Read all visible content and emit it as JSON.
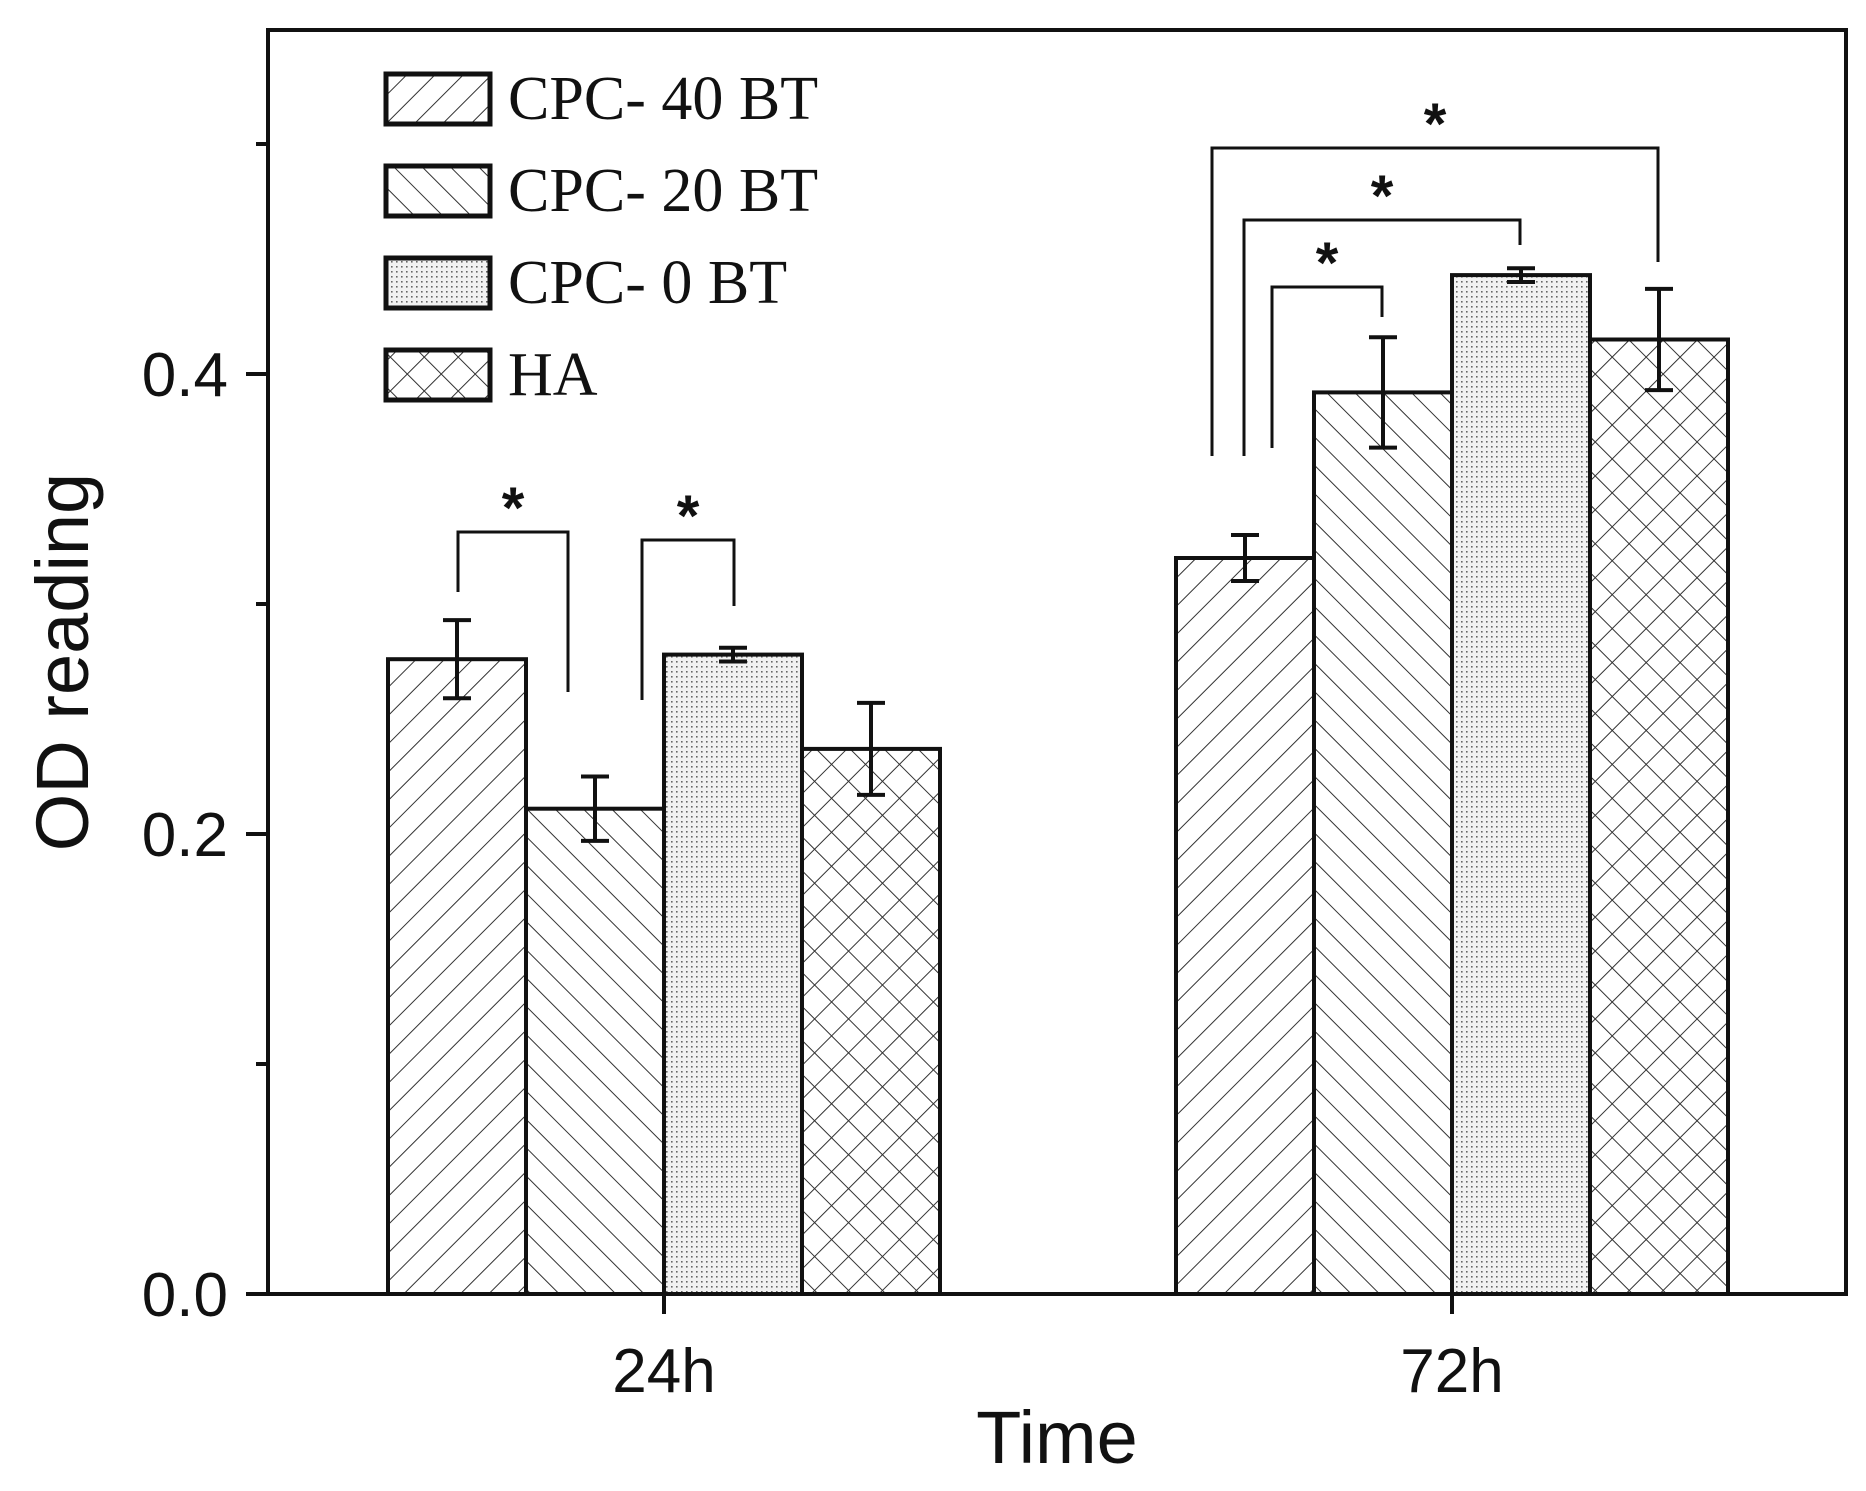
{
  "chart_data": {
    "type": "bar",
    "title": "",
    "xlabel": "Time",
    "ylabel": "OD reading",
    "ylim": [
      0,
      0.55
    ],
    "categories": [
      "24h",
      "72h"
    ],
    "yticks": [
      0.0,
      0.2,
      0.4
    ],
    "ytick_labels": [
      "0.0",
      "0.2",
      "0.4"
    ],
    "yticks_minor": [
      0.1,
      0.3,
      0.5
    ],
    "legend_position": "top-left",
    "series": [
      {
        "name": "CPC- 40 BT",
        "pattern": "forward-diagonal",
        "values": [
          0.276,
          0.32
        ],
        "errors": [
          0.017,
          0.01
        ]
      },
      {
        "name": "CPC- 20 BT",
        "pattern": "back-diagonal",
        "values": [
          0.211,
          0.392
        ],
        "errors": [
          0.014,
          0.024
        ]
      },
      {
        "name": "CPC- 0 BT",
        "pattern": "dots",
        "values": [
          0.278,
          0.443
        ],
        "errors": [
          0.003,
          0.003
        ]
      },
      {
        "name": "HA",
        "pattern": "crosshatch",
        "values": [
          0.237,
          0.415
        ],
        "errors": [
          0.02,
          0.022
        ]
      }
    ],
    "significance": [
      {
        "category": "24h",
        "from_series": "CPC- 40 BT",
        "to_series": "CPC- 20 BT",
        "label": "*"
      },
      {
        "category": "24h",
        "from_series": "CPC- 20 BT",
        "to_series": "CPC- 0 BT",
        "label": "*"
      },
      {
        "category": "72h",
        "from_series": "CPC- 40 BT",
        "to_series": "CPC- 20 BT",
        "label": "*"
      },
      {
        "category": "72h",
        "from_series": "CPC- 40 BT",
        "to_series": "CPC- 0 BT",
        "label": "*"
      },
      {
        "category": "72h",
        "from_series": "CPC- 40 BT",
        "to_series": "HA",
        "label": "*"
      }
    ],
    "colors": {
      "ink": "#111111",
      "fill": "#ffffff",
      "hatch": "#333333",
      "dots": "#555555"
    }
  }
}
